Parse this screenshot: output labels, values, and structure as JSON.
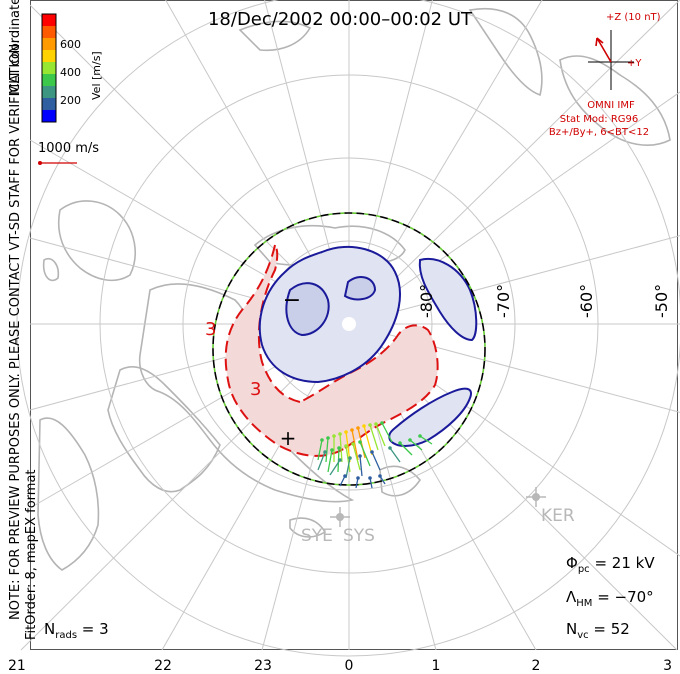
{
  "title": "18/Dec/2002 00:00–00:02 UT",
  "colorbar": {
    "unit_label": "Vel [m/s]",
    "ticks": [
      "600",
      "400",
      "200"
    ],
    "colors": [
      "#ff0000",
      "#ff5a00",
      "#ff9a00",
      "#ffd200",
      "#96e632",
      "#3cc84b",
      "#3c9682",
      "#2f5fa0",
      "#0000ff"
    ]
  },
  "side_text": {
    "coords": "MLT coordinates",
    "notice": "NOTE: FOR PREVIEW PURPOSES ONLY. PLEASE CONTACT VT-SD STAFF FOR VERIFICATION.",
    "fit": "FitOrder: 8, mapEX format"
  },
  "scale_vector": "1000 m/s",
  "imf": {
    "z_label": "+Z (10 nT)",
    "y_label": "+Y",
    "omni_label": "OMNI IMF",
    "stat_mod": "Stat Mod: RG96",
    "condition": "Bz+/By+, 6<BT<12"
  },
  "lat_labels": [
    "-80°",
    "-70°",
    "-60°",
    "-50°"
  ],
  "mlt_labels": [
    "21",
    "22",
    "23",
    "0",
    "1",
    "2",
    "3"
  ],
  "contour_labels": [
    "3",
    "3"
  ],
  "radars": [
    "SYE",
    "SYS",
    "KER"
  ],
  "stats": {
    "phi_pc_sym": "Φ",
    "phi_pc_sub": "pc",
    "phi_pc_value": " = 21 kV",
    "lambda_hm_sym": "Λ",
    "lambda_hm_sub": "HM",
    "lambda_hm_value": " = −70°",
    "n_vc_sym": "N",
    "n_vc_sub": "vc",
    "n_vc_value": " = 52",
    "n_rads_sym": "N",
    "n_rads_sub": "rads",
    "n_rads_value": " = 3"
  },
  "colors": {
    "coast": "#b4b4b4",
    "grid": "#c8c8c8",
    "positive_cell": "#2222aa",
    "negative_cell": "#dd1111",
    "hm_boundary": "#66cc33",
    "imf_text": "#d00000"
  }
}
